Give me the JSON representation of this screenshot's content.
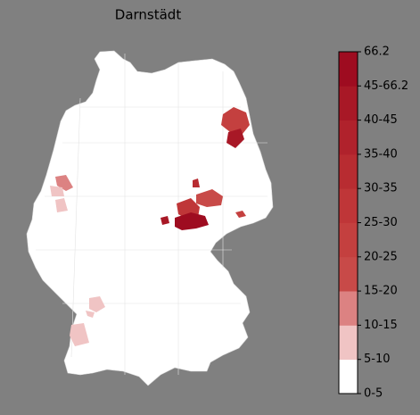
{
  "title": "Darnstädt",
  "colorbar": {
    "labels": [
      "0-5",
      "5-10",
      "10-15",
      "15-20",
      "20-25",
      "25-30",
      "30-35",
      "35-40",
      "40-45",
      "45-66.2",
      "66.2"
    ],
    "colors": [
      "#ffffff",
      "#f0c4c4",
      "#dc8282",
      "#c84a48",
      "#c4403f",
      "#bf3638",
      "#b82c31",
      "#b0222c",
      "#a81826",
      "#9e0c20"
    ]
  }
}
